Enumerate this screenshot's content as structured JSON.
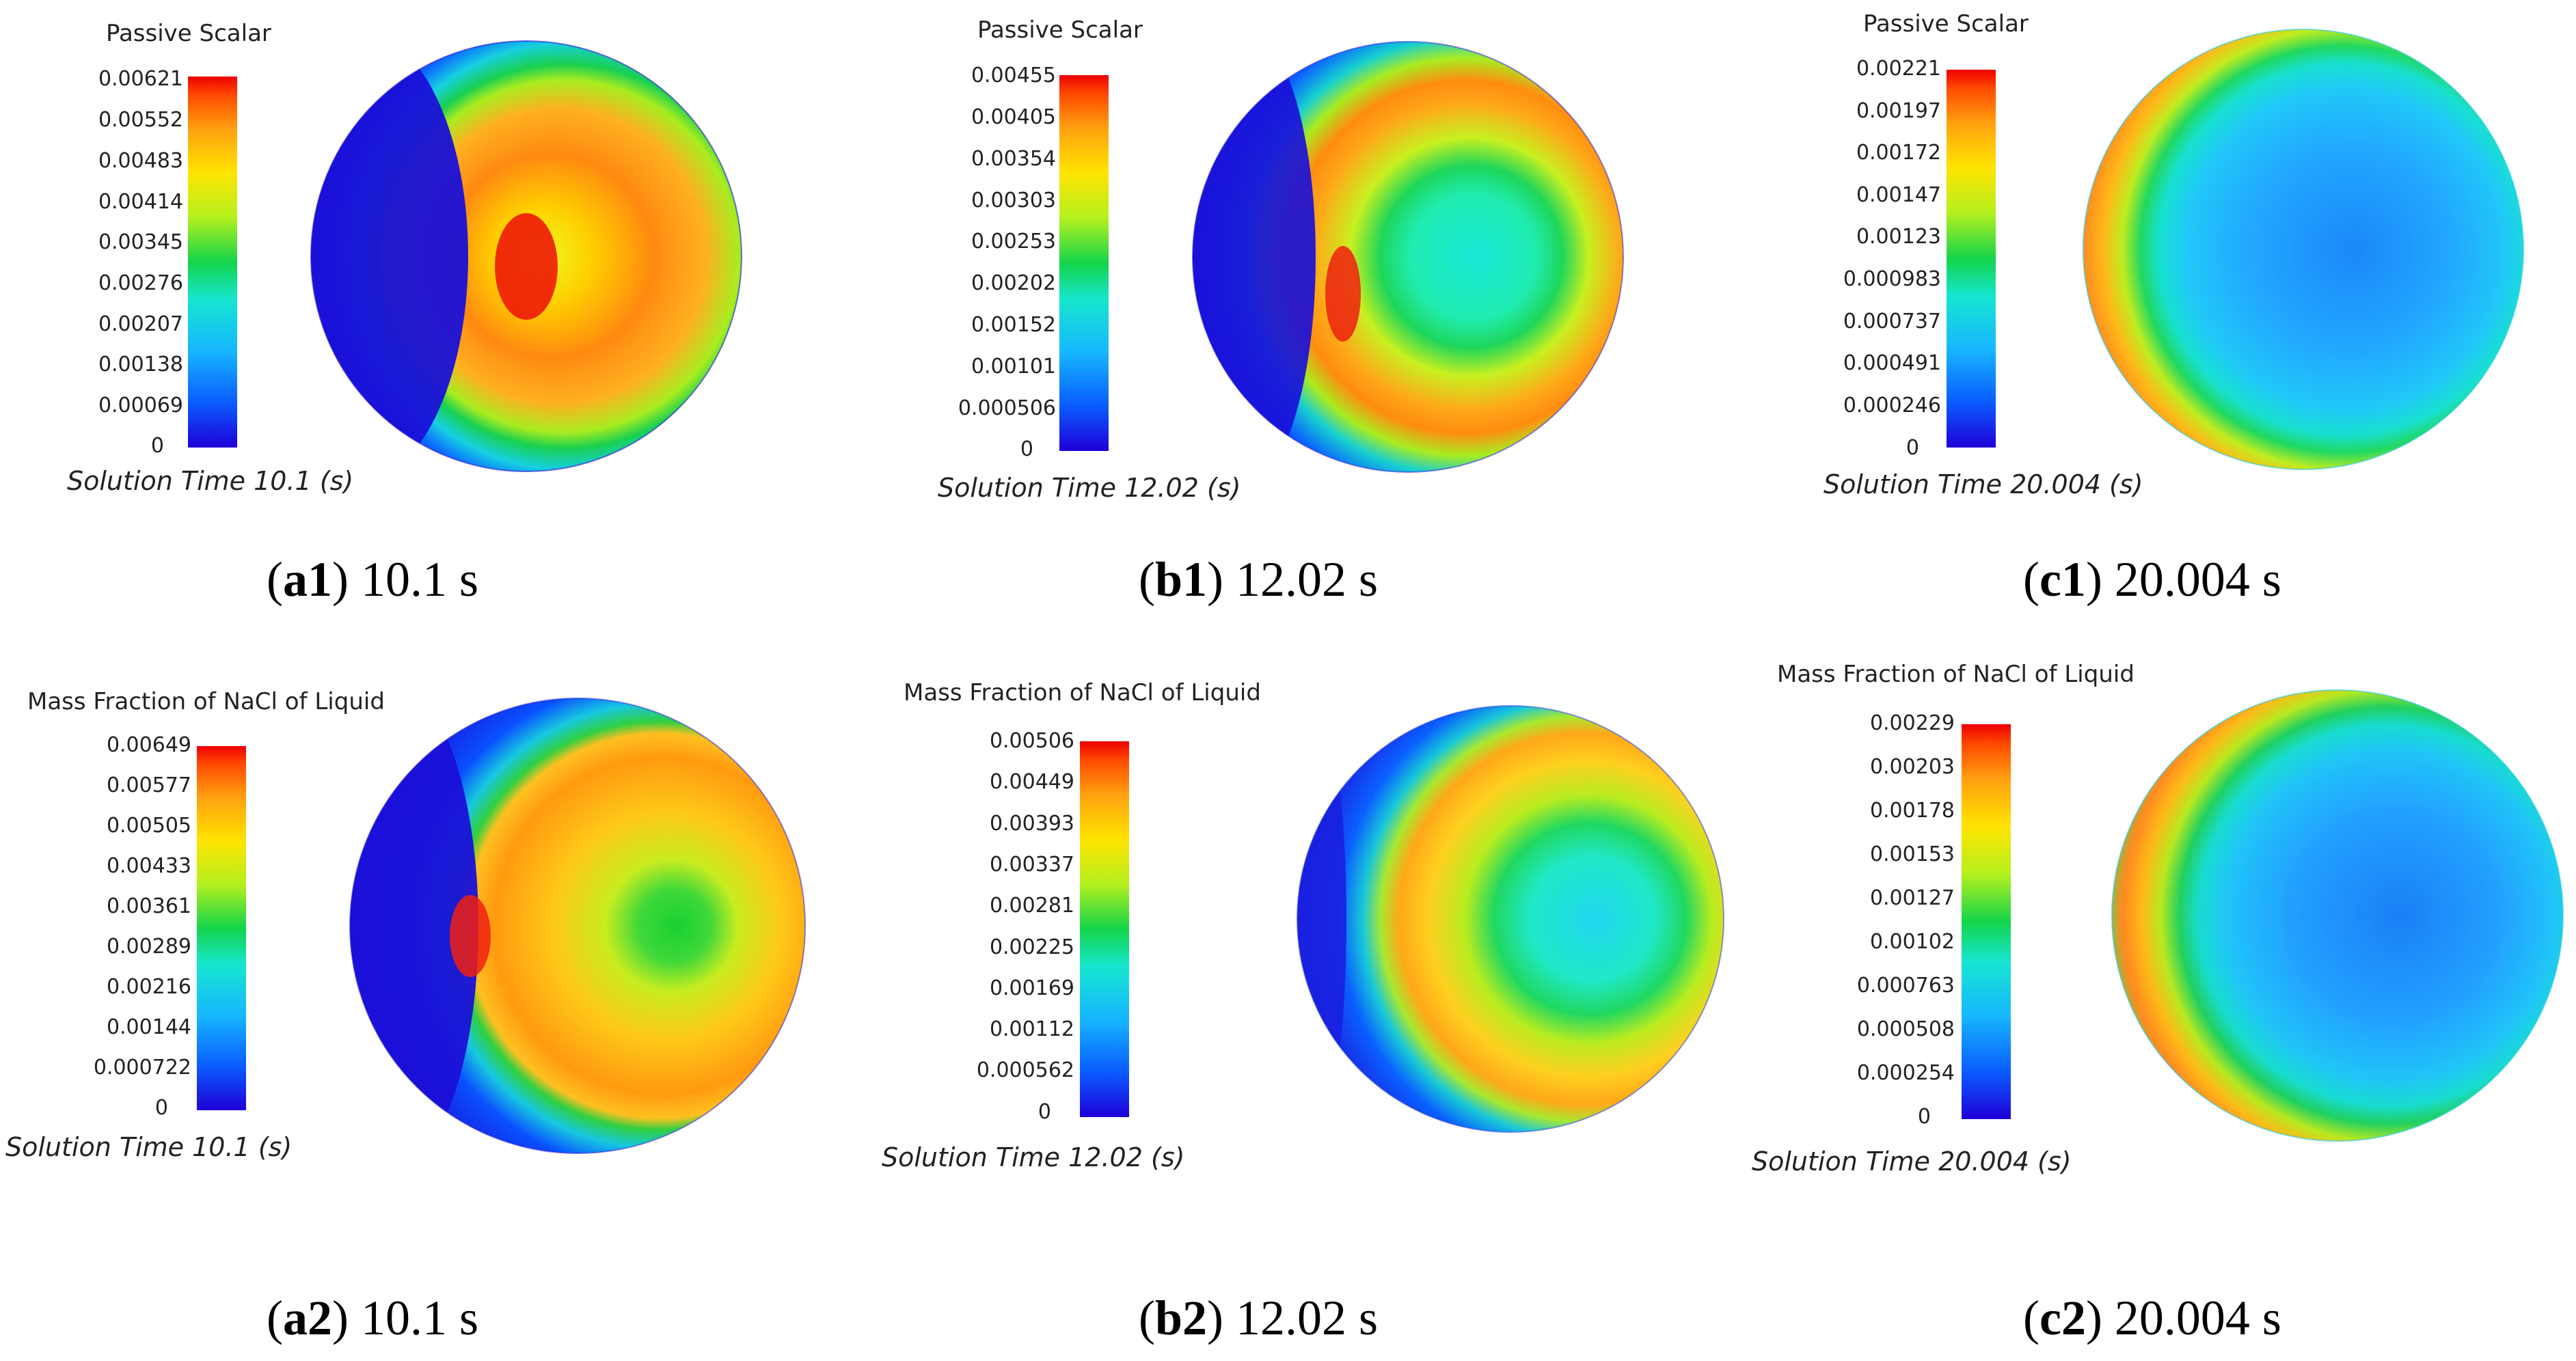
{
  "figure": {
    "panels": [
      {
        "id": "a1",
        "legend_title": "Passive Scalar",
        "ticks": [
          "0.00621",
          "0.00552",
          "0.00483",
          "0.00414",
          "0.00345",
          "0.00276",
          "0.00207",
          "0.00138",
          "0.00069",
          "0"
        ],
        "time_label": "Solution Time 10.1 (s)",
        "caption_letter": "a1",
        "caption_rest": ") 10.1 s"
      },
      {
        "id": "b1",
        "legend_title": "Passive Scalar",
        "ticks": [
          "0.00455",
          "0.00405",
          "0.00354",
          "0.00303",
          "0.00253",
          "0.00202",
          "0.00152",
          "0.00101",
          "0.000506",
          "0"
        ],
        "time_label": "Solution Time 12.02 (s)",
        "caption_letter": "b1",
        "caption_rest": ") 12.02 s"
      },
      {
        "id": "c1",
        "legend_title": "Passive Scalar",
        "ticks": [
          "0.00221",
          "0.00197",
          "0.00172",
          "0.00147",
          "0.00123",
          "0.000983",
          "0.000737",
          "0.000491",
          "0.000246",
          "0"
        ],
        "time_label": "Solution Time 20.004 (s)",
        "caption_letter": "c1",
        "caption_rest": ") 20.004 s"
      },
      {
        "id": "a2",
        "legend_title": "Mass Fraction of NaCl of Liquid",
        "ticks": [
          "0.00649",
          "0.00577",
          "0.00505",
          "0.00433",
          "0.00361",
          "0.00289",
          "0.00216",
          "0.00144",
          "0.000722",
          "0"
        ],
        "time_label": "Solution Time 10.1 (s)",
        "caption_letter": "a2",
        "caption_rest": ") 10.1 s"
      },
      {
        "id": "b2",
        "legend_title": "Mass Fraction of NaCl of Liquid",
        "ticks": [
          "0.00506",
          "0.00449",
          "0.00393",
          "0.00337",
          "0.00281",
          "0.00225",
          "0.00169",
          "0.00112",
          "0.000562",
          "0"
        ],
        "time_label": "Solution Time 12.02 (s)",
        "caption_letter": "b2",
        "caption_rest": ") 12.02 s"
      },
      {
        "id": "c2",
        "legend_title": "Mass Fraction of NaCl of Liquid",
        "ticks": [
          "0.00229",
          "0.00203",
          "0.00178",
          "0.00153",
          "0.00127",
          "0.00102",
          "0.000763",
          "0.000508",
          "0.000254",
          "0"
        ],
        "time_label": "Solution Time 20.004 (s)",
        "caption_letter": "c2",
        "caption_rest": ") 20.004 s"
      }
    ],
    "colors": {
      "rainbow": [
        "#1f00d8",
        "#0a5cff",
        "#17b6ff",
        "#16e6d0",
        "#13d44a",
        "#b4f01e",
        "#ffe400",
        "#ffa010",
        "#ff4a00",
        "#ee0000"
      ],
      "text": "#222222",
      "caption": "#000000"
    }
  }
}
